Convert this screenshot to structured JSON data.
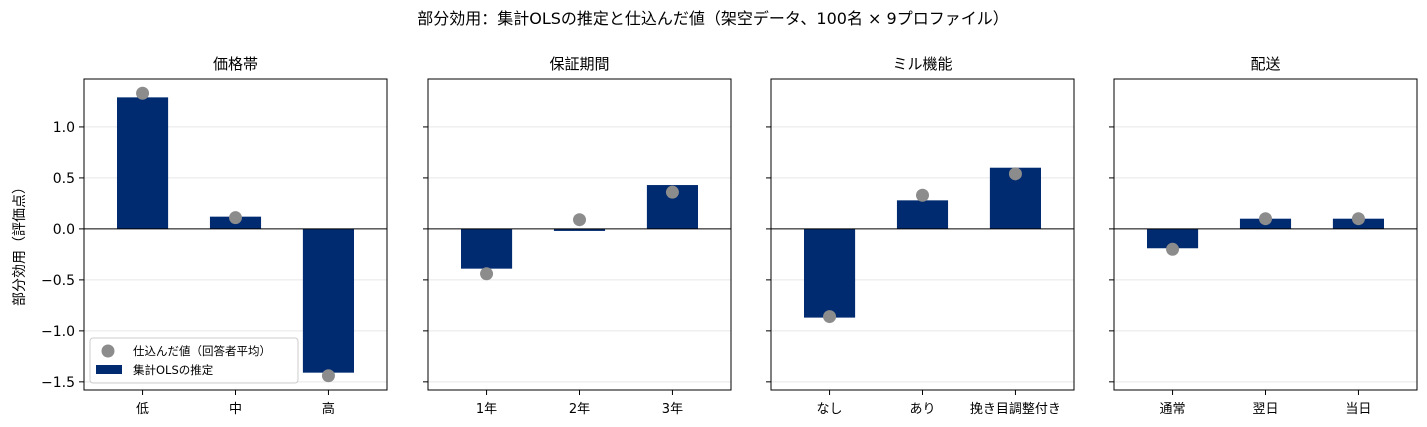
{
  "figure": {
    "title": "部分効用：集計OLSの推定と仕込んだ値（架空データ、100名 × 9プロファイル）",
    "ylabel": "部分効用（評価点）"
  },
  "legend": {
    "placement": "lower-left",
    "items": [
      {
        "label": "仕込んだ値（回答者平均）",
        "marker": "circle",
        "color": "#8c8c8c"
      },
      {
        "label": "集計OLSの推定",
        "marker": "bar",
        "color": "#002b70"
      }
    ]
  },
  "chart_data": [
    {
      "type": "bar",
      "title": "価格帯",
      "categories": [
        "低",
        "中",
        "高"
      ],
      "series": [
        {
          "name": "集計OLSの推定",
          "values": [
            1.29,
            0.12,
            -1.41
          ]
        },
        {
          "name": "仕込んだ値（回答者平均）",
          "values": [
            1.33,
            0.11,
            -1.44
          ]
        }
      ],
      "ylim": [
        -1.58,
        1.47
      ],
      "yticks": [
        -1.5,
        -1.0,
        -0.5,
        0.0,
        0.5,
        1.0
      ],
      "ytick_labels": [
        "−1.5",
        "−1.0",
        "−0.5",
        "0.0",
        "0.5",
        "1.0"
      ],
      "grid": "y",
      "zero_line": true
    },
    {
      "type": "bar",
      "title": "保証期間",
      "categories": [
        "1年",
        "2年",
        "3年"
      ],
      "series": [
        {
          "name": "集計OLSの推定",
          "values": [
            -0.39,
            -0.02,
            0.43
          ]
        },
        {
          "name": "仕込んだ値（回答者平均）",
          "values": [
            -0.44,
            0.09,
            0.36
          ]
        }
      ],
      "ylim": [
        -1.58,
        1.47
      ],
      "grid": "y",
      "zero_line": true
    },
    {
      "type": "bar",
      "title": "ミル機能",
      "categories": [
        "なし",
        "あり",
        "挽き目調整付き"
      ],
      "series": [
        {
          "name": "集計OLSの推定",
          "values": [
            -0.87,
            0.28,
            0.6
          ]
        },
        {
          "name": "仕込んだ値（回答者平均）",
          "values": [
            -0.86,
            0.33,
            0.54
          ]
        }
      ],
      "ylim": [
        -1.58,
        1.47
      ],
      "grid": "y",
      "zero_line": true
    },
    {
      "type": "bar",
      "title": "配送",
      "categories": [
        "通常",
        "翌日",
        "当日"
      ],
      "series": [
        {
          "name": "集計OLSの推定",
          "values": [
            -0.19,
            0.1,
            0.1
          ]
        },
        {
          "name": "仕込んだ値（回答者平均）",
          "values": [
            -0.2,
            0.1,
            0.1
          ]
        }
      ],
      "ylim": [
        -1.58,
        1.47
      ],
      "grid": "y",
      "zero_line": true
    }
  ]
}
